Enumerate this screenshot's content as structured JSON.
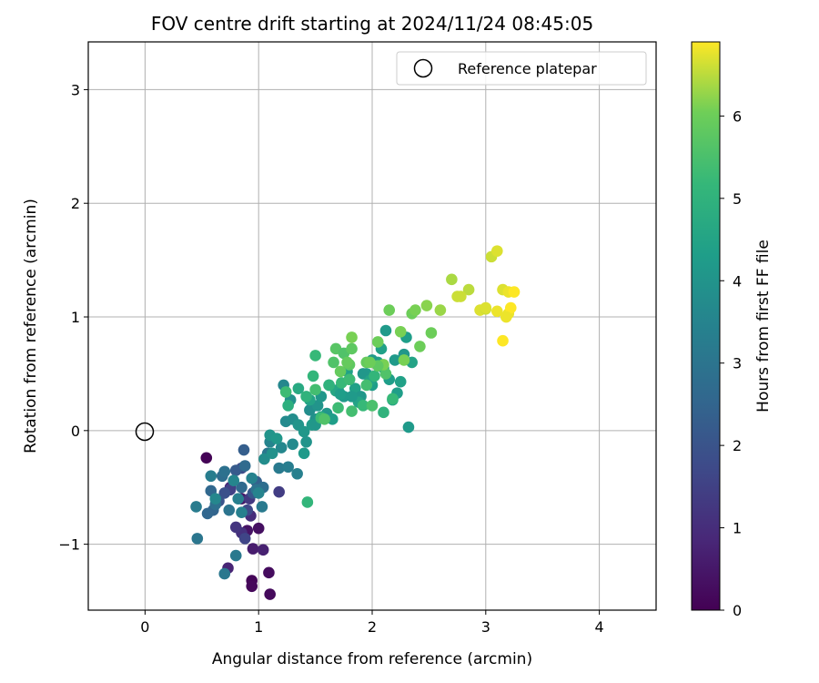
{
  "chart_data": {
    "type": "scatter",
    "title": "FOV centre drift starting at 2024/11/24 08:45:05",
    "xlabel": "Angular distance from reference (arcmin)",
    "ylabel": "Rotation from reference (arcmin)",
    "xlim": [
      -0.5,
      4.5
    ],
    "ylim": [
      -1.58,
      3.42
    ],
    "xticks": [
      0,
      1,
      2,
      3,
      4
    ],
    "xtick_labels": [
      "0",
      "1",
      "2",
      "3",
      "4"
    ],
    "yticks": [
      -1,
      0,
      1,
      2,
      3
    ],
    "ytick_labels": [
      "−1",
      "0",
      "1",
      "2",
      "3"
    ],
    "grid": true,
    "legend_position": "top-right",
    "reference": {
      "label": "Reference platepar",
      "x": 0,
      "y": 0,
      "marker": "open-circle"
    },
    "colorbar": {
      "label": "Hours from first FF file",
      "colormap": "viridis",
      "range": [
        0,
        6.9
      ],
      "ticks": [
        0,
        1,
        2,
        3,
        4,
        5,
        6
      ],
      "tick_labels": [
        "0",
        "1",
        "2",
        "3",
        "4",
        "5",
        "6"
      ]
    },
    "points": [
      [
        0.54,
        -0.24,
        0.05
      ],
      [
        0.94,
        -1.32,
        0.1
      ],
      [
        0.94,
        -1.37,
        0.15
      ],
      [
        1.1,
        -1.44,
        0.2
      ],
      [
        1.09,
        -1.25,
        0.25
      ],
      [
        1.0,
        -0.86,
        0.3
      ],
      [
        0.9,
        -0.88,
        0.4
      ],
      [
        0.85,
        -0.6,
        0.5
      ],
      [
        0.95,
        -1.04,
        0.6
      ],
      [
        1.04,
        -1.05,
        0.7
      ],
      [
        0.73,
        -1.21,
        0.8
      ],
      [
        0.75,
        -0.5,
        0.9
      ],
      [
        0.93,
        -0.75,
        1.0
      ],
      [
        0.85,
        -0.9,
        1.1
      ],
      [
        0.8,
        -0.85,
        1.2
      ],
      [
        0.92,
        -0.6,
        1.3
      ],
      [
        1.18,
        -0.54,
        1.4
      ],
      [
        0.75,
        -0.52,
        1.5
      ],
      [
        0.88,
        -0.95,
        1.6
      ],
      [
        0.9,
        -0.7,
        1.7
      ],
      [
        0.85,
        -0.33,
        1.8
      ],
      [
        0.7,
        -0.55,
        1.9
      ],
      [
        0.65,
        -0.62,
        2.0
      ],
      [
        0.95,
        -0.55,
        2.1
      ],
      [
        0.8,
        -0.35,
        2.2
      ],
      [
        0.87,
        -0.17,
        2.3
      ],
      [
        0.98,
        -0.45,
        2.4
      ],
      [
        0.6,
        -0.7,
        2.5
      ],
      [
        0.55,
        -0.73,
        2.55
      ],
      [
        0.58,
        -0.53,
        2.6
      ],
      [
        0.85,
        -0.5,
        2.65
      ],
      [
        0.88,
        -0.31,
        2.7
      ],
      [
        0.68,
        -0.4,
        2.75
      ],
      [
        1.04,
        -0.5,
        2.8
      ],
      [
        0.62,
        -0.65,
        2.85
      ],
      [
        0.7,
        -0.36,
        2.9
      ],
      [
        0.98,
        -0.52,
        2.95
      ],
      [
        0.74,
        -0.7,
        3.0
      ],
      [
        0.46,
        -0.95,
        3.05
      ],
      [
        0.7,
        -1.26,
        3.1
      ],
      [
        0.8,
        -1.1,
        3.15
      ],
      [
        1.03,
        -0.67,
        3.2
      ],
      [
        0.45,
        -0.67,
        3.25
      ],
      [
        0.58,
        -0.4,
        3.3
      ],
      [
        0.82,
        -0.6,
        3.35
      ],
      [
        0.85,
        -0.72,
        3.4
      ],
      [
        0.94,
        -0.42,
        3.45
      ],
      [
        1.0,
        -0.55,
        3.5
      ],
      [
        0.78,
        -0.44,
        3.55
      ],
      [
        0.62,
        -0.6,
        3.6
      ],
      [
        1.08,
        -0.2,
        3.1
      ],
      [
        1.18,
        -0.33,
        3.2
      ],
      [
        1.26,
        -0.32,
        3.3
      ],
      [
        1.34,
        -0.38,
        3.4
      ],
      [
        1.1,
        -0.1,
        3.5
      ],
      [
        1.2,
        -0.15,
        3.6
      ],
      [
        1.3,
        -0.12,
        3.7
      ],
      [
        1.05,
        -0.25,
        3.8
      ],
      [
        1.12,
        -0.2,
        3.9
      ],
      [
        1.1,
        -0.04,
        4.0
      ],
      [
        1.16,
        -0.07,
        4.1
      ],
      [
        1.22,
        0.4,
        3.6
      ],
      [
        1.24,
        0.08,
        3.7
      ],
      [
        1.3,
        0.1,
        3.8
      ],
      [
        1.28,
        0.27,
        3.9
      ],
      [
        1.35,
        0.05,
        4.0
      ],
      [
        1.4,
        -0.01,
        4.1
      ],
      [
        1.45,
        0.18,
        3.8
      ],
      [
        1.5,
        0.1,
        3.9
      ],
      [
        1.52,
        0.22,
        4.0
      ],
      [
        1.55,
        0.3,
        4.1
      ],
      [
        1.4,
        -0.2,
        4.2
      ],
      [
        1.42,
        -0.1,
        4.0
      ],
      [
        1.47,
        0.05,
        4.2
      ],
      [
        1.6,
        0.15,
        4.1
      ],
      [
        1.62,
        0.4,
        4.2
      ],
      [
        1.58,
        0.12,
        4.0
      ],
      [
        1.65,
        0.1,
        4.3
      ],
      [
        1.7,
        0.36,
        4.0
      ],
      [
        1.75,
        0.3,
        4.2
      ],
      [
        1.8,
        0.45,
        4.3
      ],
      [
        1.85,
        0.37,
        4.4
      ],
      [
        1.9,
        0.3,
        4.1
      ],
      [
        1.95,
        0.5,
        4.2
      ],
      [
        2.0,
        0.4,
        4.3
      ],
      [
        2.05,
        0.6,
        4.4
      ],
      [
        2.1,
        0.55,
        4.5
      ],
      [
        2.15,
        0.45,
        4.3
      ],
      [
        2.2,
        0.62,
        4.2
      ],
      [
        2.25,
        0.43,
        4.4
      ],
      [
        2.3,
        0.82,
        4.3
      ],
      [
        2.35,
        0.6,
        4.5
      ],
      [
        2.12,
        0.88,
        4.2
      ],
      [
        2.22,
        0.33,
        4.3
      ],
      [
        2.32,
        0.03,
        4.2
      ],
      [
        1.68,
        0.35,
        4.6
      ],
      [
        1.78,
        0.52,
        4.4
      ],
      [
        1.88,
        0.25,
        4.5
      ],
      [
        2.0,
        0.62,
        4.2
      ],
      [
        2.08,
        0.72,
        4.4
      ],
      [
        2.18,
        0.27,
        4.6
      ],
      [
        2.28,
        0.67,
        4.1
      ],
      [
        1.92,
        0.5,
        4.1
      ],
      [
        1.82,
        0.3,
        4.2
      ],
      [
        1.72,
        0.32,
        4.3
      ],
      [
        1.5,
        0.05,
        4.1
      ],
      [
        1.45,
        0.27,
        4.5
      ],
      [
        1.55,
        0.12,
        4.6
      ],
      [
        1.35,
        0.37,
        4.7
      ],
      [
        1.98,
        0.44,
        4.5
      ],
      [
        1.26,
        0.22,
        4.9
      ],
      [
        1.42,
        0.3,
        5.0
      ],
      [
        1.48,
        0.48,
        5.1
      ],
      [
        1.5,
        0.66,
        5.2
      ],
      [
        1.43,
        -0.63,
        5.1
      ],
      [
        1.55,
        0.11,
        5.3
      ],
      [
        1.62,
        0.4,
        5.0
      ],
      [
        1.73,
        0.42,
        5.2
      ],
      [
        1.8,
        0.45,
        5.3
      ],
      [
        1.92,
        0.22,
        5.2
      ],
      [
        1.95,
        0.4,
        5.4
      ],
      [
        2.02,
        0.48,
        5.1
      ],
      [
        2.1,
        0.16,
        5.0
      ],
      [
        2.18,
        0.28,
        5.2
      ],
      [
        2.0,
        0.22,
        5.5
      ],
      [
        1.82,
        0.17,
        5.4
      ],
      [
        1.7,
        0.2,
        5.3
      ],
      [
        1.5,
        0.36,
        5.4
      ],
      [
        2.12,
        0.5,
        5.6
      ],
      [
        1.24,
        0.34,
        5.3
      ],
      [
        1.66,
        0.6,
        5.6
      ],
      [
        1.68,
        0.72,
        5.7
      ],
      [
        1.75,
        0.68,
        5.6
      ],
      [
        1.82,
        0.72,
        5.8
      ],
      [
        1.72,
        0.52,
        5.9
      ],
      [
        1.8,
        0.58,
        5.8
      ],
      [
        1.78,
        0.6,
        5.9
      ],
      [
        1.95,
        0.6,
        5.9
      ],
      [
        2.05,
        0.78,
        6.0
      ],
      [
        2.1,
        0.58,
        6.1
      ],
      [
        2.05,
        0.57,
        5.8
      ],
      [
        2.15,
        1.06,
        6.0
      ],
      [
        2.25,
        0.87,
        6.1
      ],
      [
        2.35,
        1.03,
        6.0
      ],
      [
        2.38,
        1.06,
        6.1
      ],
      [
        2.42,
        0.74,
        6.0
      ],
      [
        2.48,
        1.1,
        6.2
      ],
      [
        2.28,
        0.62,
        6.1
      ],
      [
        1.82,
        0.82,
        6.1
      ],
      [
        1.98,
        0.6,
        6.0
      ],
      [
        1.58,
        0.1,
        5.6
      ],
      [
        2.52,
        0.86,
        6.0
      ],
      [
        2.6,
        1.06,
        6.3
      ],
      [
        2.7,
        1.33,
        6.4
      ],
      [
        2.75,
        1.18,
        6.6
      ],
      [
        2.85,
        1.24,
        6.5
      ],
      [
        2.95,
        1.06,
        6.7
      ],
      [
        3.0,
        1.07,
        6.6
      ],
      [
        3.05,
        1.53,
        6.6
      ],
      [
        3.1,
        1.58,
        6.7
      ],
      [
        3.1,
        1.05,
        6.8
      ],
      [
        3.15,
        1.24,
        6.7
      ],
      [
        3.2,
        1.22,
        6.8
      ],
      [
        3.2,
        1.03,
        6.8
      ],
      [
        3.25,
        1.22,
        6.9
      ],
      [
        3.15,
        0.79,
        6.9
      ],
      [
        3.22,
        1.08,
        6.9
      ],
      [
        3.18,
        1.0,
        6.8
      ],
      [
        3.0,
        1.08,
        6.7
      ],
      [
        2.78,
        1.18,
        6.6
      ]
    ]
  }
}
